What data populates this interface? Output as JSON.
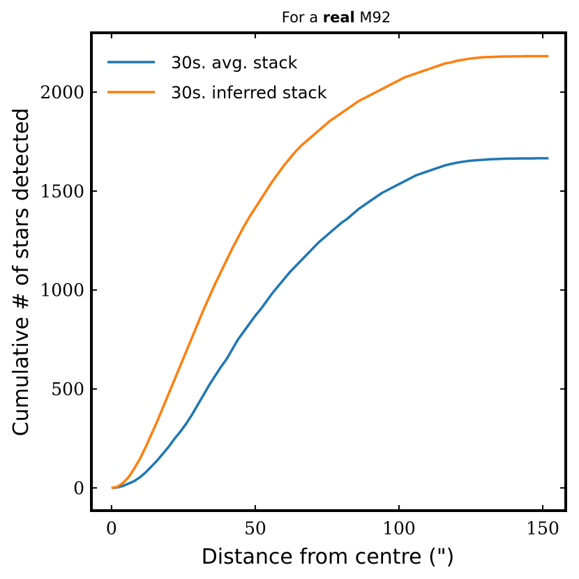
{
  "chart_data": {
    "type": "line",
    "title_prefix": "For a ",
    "title_bold": "real",
    "title_suffix": " M92",
    "xlabel": "Distance from centre (\")",
    "ylabel": "Cumulative # of stars detected",
    "xlim": [
      -7,
      158
    ],
    "ylim": [
      -115,
      2300
    ],
    "xticks": [
      0,
      50,
      100,
      150
    ],
    "yticks": [
      0,
      500,
      1000,
      1500,
      2000
    ],
    "grid": false,
    "legend_position": "top-left",
    "series": [
      {
        "name": "30s. avg. stack",
        "color": "#1f77b4",
        "x": [
          0,
          2,
          4,
          6,
          8,
          10,
          12,
          14,
          16,
          18,
          20,
          22,
          24,
          26,
          28,
          30,
          32,
          34,
          36,
          38,
          40,
          42,
          44,
          46,
          48,
          50,
          52,
          54,
          56,
          58,
          60,
          62,
          64,
          66,
          68,
          70,
          72,
          74,
          76,
          78,
          80,
          82,
          84,
          86,
          88,
          90,
          92,
          94,
          96,
          98,
          100,
          102,
          104,
          106,
          108,
          110,
          112,
          114,
          116,
          118,
          120,
          122,
          124,
          126,
          128,
          130,
          132,
          134,
          136,
          138,
          140,
          142,
          144,
          146,
          148,
          150,
          152
        ],
        "y": [
          0,
          2,
          10,
          22,
          35,
          55,
          80,
          110,
          140,
          175,
          210,
          250,
          285,
          325,
          370,
          420,
          470,
          520,
          565,
          610,
          650,
          700,
          750,
          790,
          830,
          870,
          905,
          945,
          985,
          1020,
          1055,
          1090,
          1120,
          1150,
          1180,
          1210,
          1240,
          1265,
          1290,
          1315,
          1340,
          1360,
          1385,
          1410,
          1430,
          1450,
          1470,
          1490,
          1505,
          1520,
          1535,
          1550,
          1565,
          1580,
          1590,
          1600,
          1610,
          1620,
          1630,
          1637,
          1643,
          1648,
          1652,
          1655,
          1657,
          1659,
          1661,
          1662,
          1663,
          1664,
          1664,
          1665,
          1665,
          1665,
          1666,
          1666,
          1666
        ]
      },
      {
        "name": "30s. inferred stack",
        "color": "#ff7f0e",
        "x": [
          0,
          2,
          4,
          6,
          8,
          10,
          12,
          14,
          16,
          18,
          20,
          22,
          24,
          26,
          28,
          30,
          32,
          34,
          36,
          38,
          40,
          42,
          44,
          46,
          48,
          50,
          52,
          54,
          56,
          58,
          60,
          62,
          64,
          66,
          68,
          70,
          72,
          74,
          76,
          78,
          80,
          82,
          84,
          86,
          88,
          90,
          92,
          94,
          96,
          98,
          100,
          102,
          104,
          106,
          108,
          110,
          112,
          114,
          116,
          118,
          120,
          122,
          124,
          126,
          128,
          130,
          132,
          134,
          136,
          138,
          140,
          142,
          144,
          146,
          148,
          150,
          152
        ],
        "y": [
          0,
          5,
          25,
          55,
          100,
          150,
          210,
          275,
          340,
          410,
          480,
          550,
          620,
          690,
          760,
          830,
          900,
          965,
          1030,
          1090,
          1150,
          1210,
          1265,
          1320,
          1370,
          1415,
          1460,
          1505,
          1550,
          1590,
          1630,
          1665,
          1700,
          1730,
          1755,
          1780,
          1805,
          1830,
          1855,
          1875,
          1895,
          1915,
          1935,
          1955,
          1970,
          1985,
          2000,
          2015,
          2030,
          2045,
          2060,
          2075,
          2085,
          2095,
          2105,
          2115,
          2125,
          2135,
          2145,
          2150,
          2158,
          2163,
          2168,
          2172,
          2175,
          2177,
          2178,
          2179,
          2180,
          2180,
          2181,
          2181,
          2182,
          2182,
          2182,
          2182,
          2182
        ]
      }
    ]
  }
}
